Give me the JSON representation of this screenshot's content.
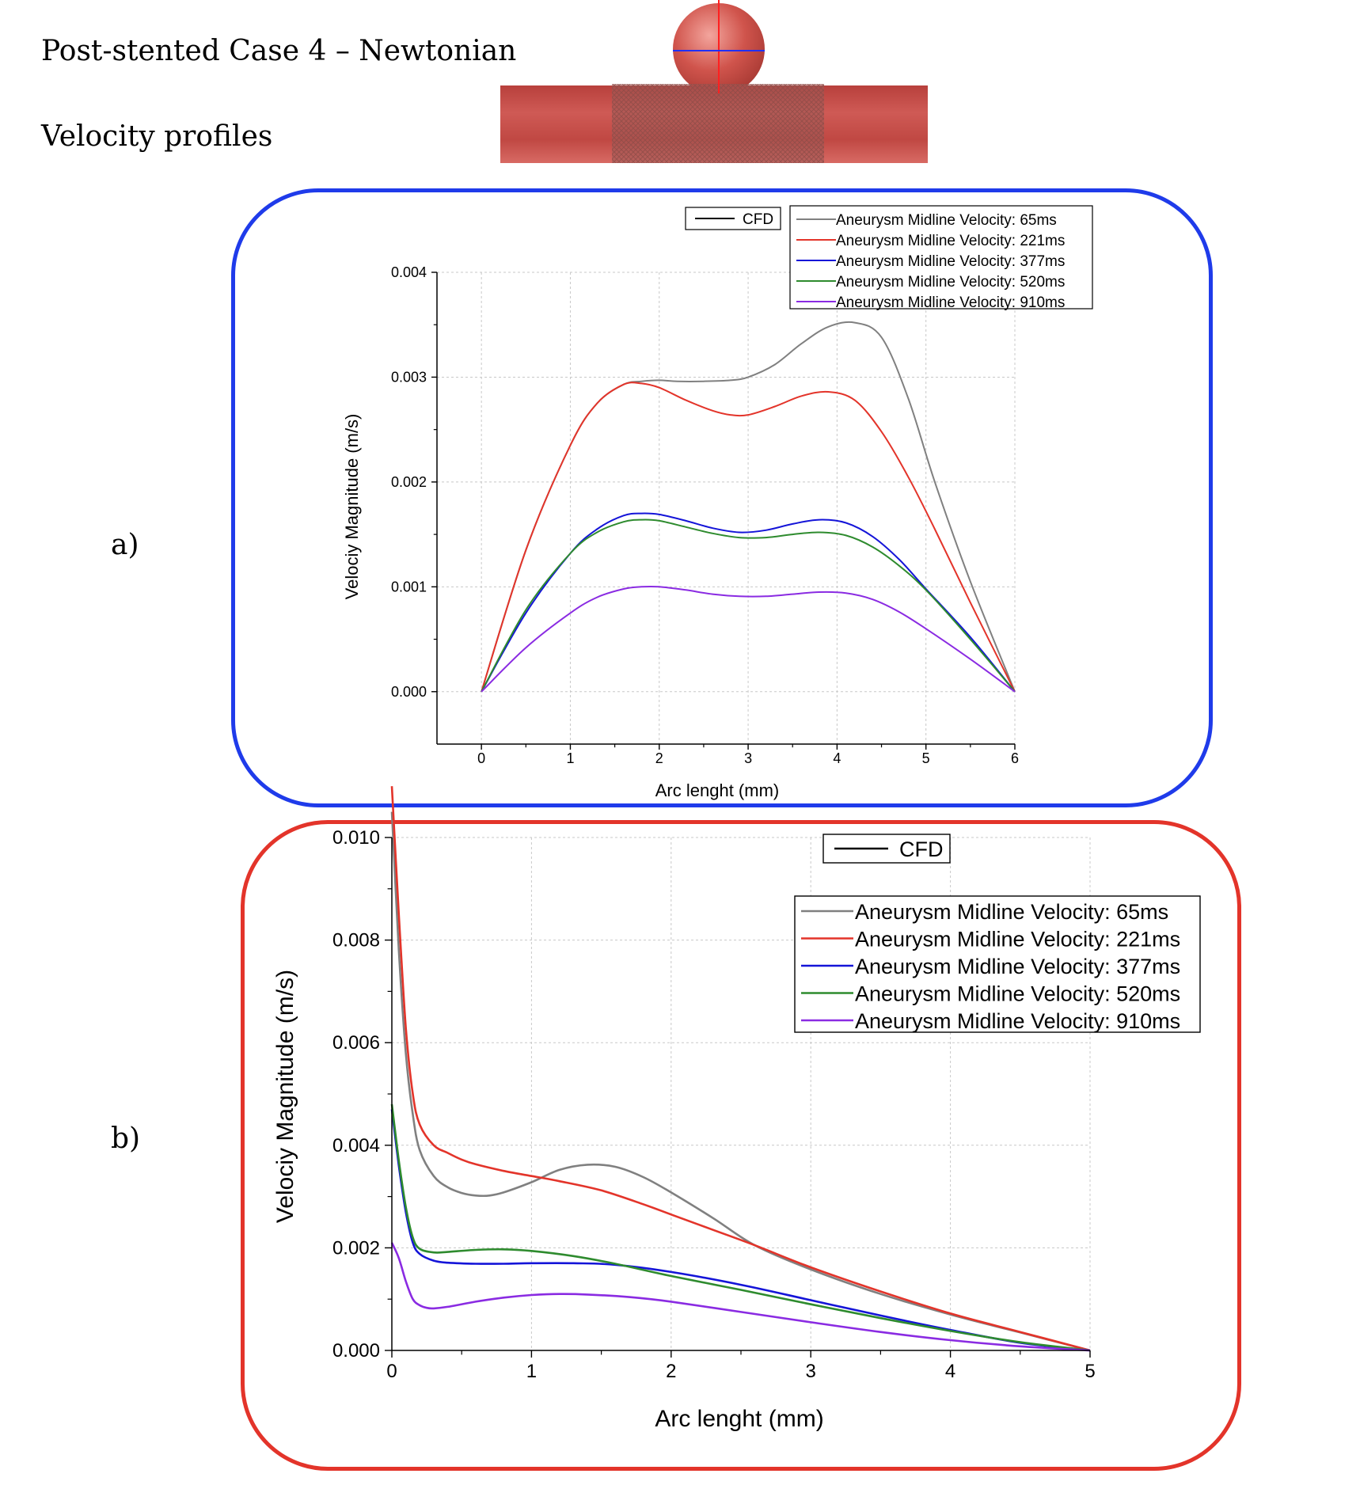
{
  "page": {
    "title": "Post-stented Case 4 – Newtonian",
    "subtitle": "Velocity profiles",
    "panel_a_label": "a)",
    "panel_b_label": "b)"
  },
  "colors": {
    "frame_a": "#1f3bea",
    "frame_b": "#e3342a",
    "vessel": "#c44a4a",
    "gray": "#808080",
    "red": "#e3342a",
    "blue": "#1414d8",
    "green": "#2e8b2e",
    "purple": "#8a2be2"
  },
  "chart_data": [
    {
      "type": "line",
      "panel": "a",
      "xlabel": "Arc lenght (mm)",
      "ylabel": "Velociy Magnitude (m/s)",
      "xlim": [
        -0.5,
        6
      ],
      "ylim": [
        -0.0005,
        0.004
      ],
      "xticks": [
        0,
        1,
        2,
        3,
        4,
        5,
        6
      ],
      "xtick_labels": [
        "0",
        "1",
        "2",
        "3",
        "4",
        "5",
        "6"
      ],
      "yticks": [
        0,
        0.001,
        0.002,
        0.003,
        0.004
      ],
      "ytick_labels": [
        "0.000",
        "0.001",
        "0.002",
        "0.003",
        "0.004"
      ],
      "grid": true,
      "legend_cfd": "CFD",
      "legend_placement": "top-right",
      "series": [
        {
          "name": "Aneurysm Midline Velocity: 65ms",
          "color_key": "gray",
          "x": [
            0,
            0.5,
            1,
            1.3,
            1.6,
            1.8,
            2,
            2.2,
            2.5,
            2.8,
            3,
            3.3,
            3.6,
            3.9,
            4.2,
            4.5,
            4.8,
            5.1,
            5.5,
            6
          ],
          "y": [
            0,
            0.00135,
            0.00235,
            0.00275,
            0.00293,
            0.00296,
            0.00297,
            0.00296,
            0.00296,
            0.00297,
            0.003,
            0.00312,
            0.00332,
            0.00348,
            0.00352,
            0.00338,
            0.0028,
            0.002,
            0.00105,
            0
          ]
        },
        {
          "name": "Aneurysm Midline Velocity: 221ms",
          "color_key": "red",
          "x": [
            0,
            0.5,
            1,
            1.3,
            1.6,
            1.8,
            2,
            2.3,
            2.6,
            2.8,
            3,
            3.3,
            3.6,
            3.9,
            4.2,
            4.5,
            4.8,
            5.1,
            5.5,
            6
          ],
          "y": [
            0,
            0.00135,
            0.00235,
            0.00275,
            0.00293,
            0.00294,
            0.0029,
            0.00278,
            0.00268,
            0.00264,
            0.00264,
            0.00272,
            0.00282,
            0.00286,
            0.00278,
            0.00248,
            0.00205,
            0.00155,
            0.00085,
            0
          ]
        },
        {
          "name": "Aneurysm Midline Velocity: 377ms",
          "color_key": "blue",
          "x": [
            0,
            0.5,
            1,
            1.3,
            1.6,
            1.8,
            2,
            2.3,
            2.6,
            2.9,
            3.2,
            3.5,
            3.8,
            4.1,
            4.4,
            4.7,
            5,
            5.5,
            6
          ],
          "y": [
            0,
            0.00075,
            0.00132,
            0.00155,
            0.00168,
            0.0017,
            0.00169,
            0.00163,
            0.00156,
            0.00152,
            0.00154,
            0.0016,
            0.00164,
            0.00161,
            0.00148,
            0.00126,
            0.00098,
            0.00052,
            0
          ]
        },
        {
          "name": "Aneurysm Midline Velocity: 520ms",
          "color_key": "green",
          "x": [
            0,
            0.5,
            1,
            1.3,
            1.6,
            1.8,
            2,
            2.3,
            2.6,
            2.9,
            3.2,
            3.5,
            3.8,
            4.1,
            4.4,
            4.7,
            5,
            5.5,
            6
          ],
          "y": [
            0,
            0.00078,
            0.00132,
            0.00152,
            0.00162,
            0.00164,
            0.00163,
            0.00157,
            0.00151,
            0.00147,
            0.00147,
            0.0015,
            0.00152,
            0.00149,
            0.00138,
            0.0012,
            0.00097,
            0.0005,
            0
          ]
        },
        {
          "name": "Aneurysm Midline Velocity: 910ms",
          "color_key": "purple",
          "x": [
            0,
            0.5,
            1,
            1.3,
            1.6,
            1.8,
            2,
            2.3,
            2.6,
            2.9,
            3.2,
            3.5,
            3.8,
            4.1,
            4.4,
            4.7,
            5,
            5.5,
            6
          ],
          "y": [
            0,
            0.00042,
            0.00075,
            0.0009,
            0.00098,
            0.001,
            0.001,
            0.00097,
            0.00093,
            0.00091,
            0.00091,
            0.00093,
            0.00095,
            0.00094,
            0.00088,
            0.00076,
            0.0006,
            0.00031,
            0
          ]
        }
      ]
    },
    {
      "type": "line",
      "panel": "b",
      "xlabel": "Arc lenght (mm)",
      "ylabel": "Velociy Magnitude (m/s)",
      "xlim": [
        0,
        5
      ],
      "ylim": [
        0,
        0.01
      ],
      "xticks": [
        0,
        1,
        2,
        3,
        4,
        5
      ],
      "xtick_labels": [
        "0",
        "1",
        "2",
        "3",
        "4",
        "5"
      ],
      "yticks": [
        0,
        0.002,
        0.004,
        0.006,
        0.008,
        0.01
      ],
      "ytick_labels": [
        "0.000",
        "0.002",
        "0.004",
        "0.006",
        "0.008",
        "0.010"
      ],
      "grid": true,
      "legend_cfd": "CFD",
      "legend_placement": "top-right",
      "series": [
        {
          "name": "Aneurysm Midline Velocity: 65ms",
          "color_key": "gray",
          "x": [
            0,
            0.05,
            0.1,
            0.15,
            0.2,
            0.3,
            0.4,
            0.5,
            0.6,
            0.7,
            0.8,
            1,
            1.2,
            1.4,
            1.6,
            1.8,
            2,
            2.3,
            2.6,
            3,
            3.5,
            4,
            4.5,
            5
          ],
          "y": [
            0.0105,
            0.0078,
            0.0058,
            0.0046,
            0.0039,
            0.0034,
            0.00318,
            0.00307,
            0.00302,
            0.00302,
            0.00308,
            0.00328,
            0.00352,
            0.00362,
            0.00358,
            0.00338,
            0.00308,
            0.00258,
            0.00205,
            0.00158,
            0.0011,
            0.0007,
            0.00035,
            0
          ]
        },
        {
          "name": "Aneurysm Midline Velocity: 221ms",
          "color_key": "red",
          "x": [
            0,
            0.05,
            0.1,
            0.15,
            0.2,
            0.3,
            0.4,
            0.5,
            0.6,
            0.8,
            1,
            1.2,
            1.5,
            1.8,
            2,
            2.3,
            2.6,
            3,
            3.5,
            4,
            4.5,
            5
          ],
          "y": [
            0.011,
            0.0085,
            0.0063,
            0.005,
            0.0044,
            0.004,
            0.00385,
            0.00372,
            0.00363,
            0.0035,
            0.0034,
            0.0033,
            0.00312,
            0.00285,
            0.00265,
            0.00235,
            0.00205,
            0.00162,
            0.00115,
            0.00072,
            0.00036,
            0
          ]
        },
        {
          "name": "Aneurysm Midline Velocity: 377ms",
          "color_key": "blue",
          "x": [
            0,
            0.05,
            0.1,
            0.15,
            0.2,
            0.3,
            0.4,
            0.6,
            0.8,
            1,
            1.3,
            1.6,
            2,
            2.5,
            3,
            3.5,
            4,
            4.5,
            5
          ],
          "y": [
            0.0047,
            0.0036,
            0.0027,
            0.0021,
            0.00188,
            0.00175,
            0.00171,
            0.00169,
            0.00169,
            0.0017,
            0.0017,
            0.00167,
            0.00153,
            0.00128,
            0.00098,
            0.00068,
            0.0004,
            0.00015,
            0
          ]
        },
        {
          "name": "Aneurysm Midline Velocity: 520ms",
          "color_key": "green",
          "x": [
            0,
            0.05,
            0.1,
            0.15,
            0.2,
            0.3,
            0.4,
            0.6,
            0.8,
            1,
            1.3,
            1.6,
            2,
            2.5,
            3,
            3.5,
            4,
            4.5,
            5
          ],
          "y": [
            0.0048,
            0.0037,
            0.0028,
            0.0022,
            0.00198,
            0.00191,
            0.00192,
            0.00196,
            0.00197,
            0.00194,
            0.00184,
            0.00169,
            0.00145,
            0.00118,
            0.0009,
            0.00063,
            0.00038,
            0.00016,
            0
          ]
        },
        {
          "name": "Aneurysm Midline Velocity: 910ms",
          "color_key": "purple",
          "x": [
            0,
            0.05,
            0.1,
            0.15,
            0.2,
            0.25,
            0.3,
            0.4,
            0.6,
            0.8,
            1,
            1.2,
            1.4,
            1.7,
            2,
            2.5,
            3,
            3.5,
            4,
            4.5,
            5
          ],
          "y": [
            0.0021,
            0.0018,
            0.00135,
            0.001,
            0.00088,
            0.00083,
            0.00082,
            0.00085,
            0.00095,
            0.00103,
            0.00108,
            0.0011,
            0.00109,
            0.00104,
            0.00095,
            0.00075,
            0.00055,
            0.00036,
            0.0002,
            8e-05,
            0
          ]
        }
      ]
    }
  ]
}
